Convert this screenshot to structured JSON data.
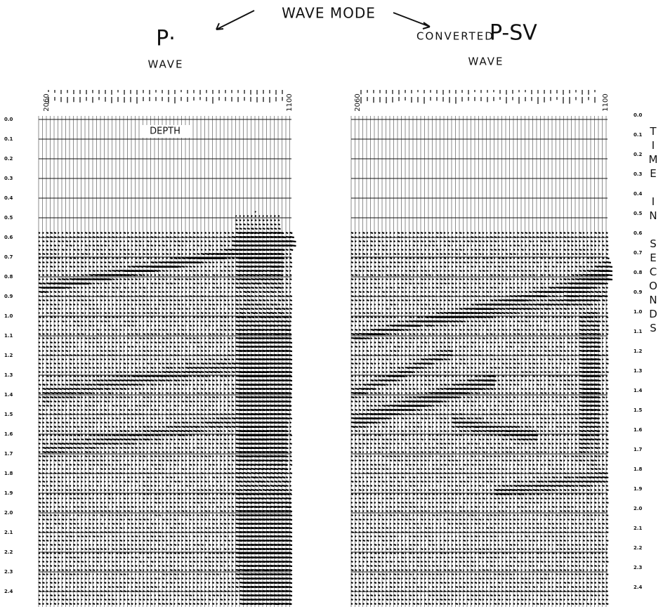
{
  "title": "WAVE MODE",
  "left_panel": {
    "heading": "P·",
    "subheading": "WAVE",
    "depth_start": "2060",
    "depth_end": "1100",
    "annotation": "DEPTH"
  },
  "right_panel": {
    "heading_prefix": "CONVERTED",
    "heading": "P-SV",
    "subheading": "WAVE",
    "depth_start": "2060",
    "depth_end": "1100"
  },
  "time_labels_left": [
    "0.0",
    "0.1",
    "0.2",
    "0.3",
    "0.4",
    "0.5",
    "0.6",
    "0.7",
    "0.8",
    "0.9",
    "1.0",
    "1.1",
    "1.2",
    "1.3",
    "1.4",
    "1.5",
    "1.6",
    "1.7",
    "1.8",
    "1.9",
    "2.0",
    "2.1",
    "2.2",
    "2.3",
    "2.4"
  ],
  "time_labels_right": [
    "0.0",
    "0.1",
    "0.2",
    "0.3",
    "0.4",
    "0.5",
    "0.6",
    "0.7",
    "0.8",
    "0.9",
    "1.0",
    "1.1",
    "1.2",
    "1.3",
    "1.4",
    "1.5",
    "1.6",
    "1.7",
    "1.8",
    "1.9",
    "2.0",
    "2.1",
    "2.2",
    "2.3",
    "2.4"
  ],
  "axis_title": "TIME IN SECONDS"
}
